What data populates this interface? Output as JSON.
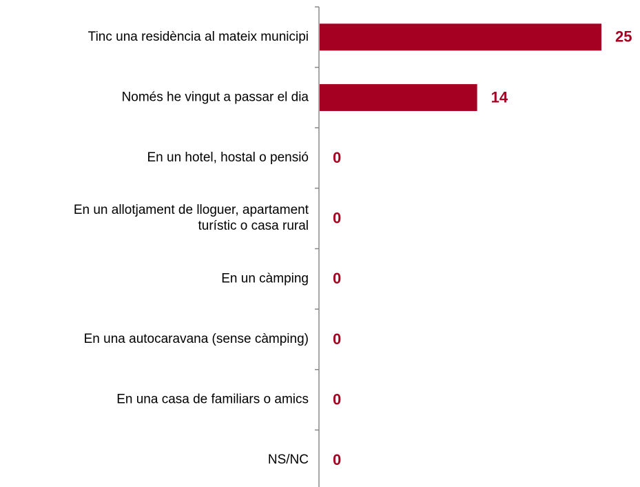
{
  "chart_data": {
    "type": "bar",
    "orientation": "horizontal",
    "categories": [
      "Tinc una residència al mateix municipi",
      "Només he vingut a passar el dia",
      "En un hotel, hostal o pensió",
      "En un allotjament de lloguer, apartament\nturístic o casa rural",
      "En un càmping",
      "En una autocaravana (sense càmping)",
      "En una casa de familiars o amics",
      "NS/NC"
    ],
    "values": [
      25,
      14,
      0,
      0,
      0,
      0,
      0,
      0
    ],
    "color": "#a50021"
  }
}
